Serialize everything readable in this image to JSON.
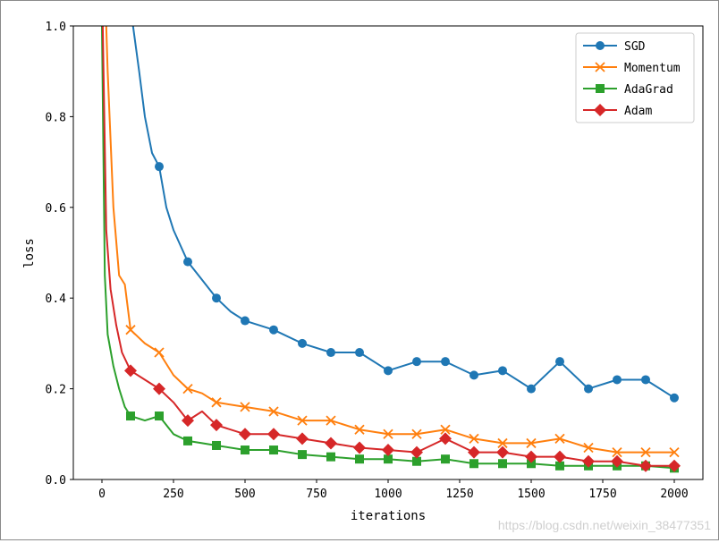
{
  "chart_data": {
    "type": "line",
    "xlabel": "iterations",
    "ylabel": "loss",
    "xlim": [
      -100,
      2100
    ],
    "ylim": [
      0,
      1.0
    ],
    "xticks": [
      "0",
      "250",
      "500",
      "750",
      "1000",
      "1250",
      "1500",
      "1750",
      "2000"
    ],
    "yticks": [
      "0.0",
      "0.2",
      "0.4",
      "0.6",
      "0.8",
      "1.0"
    ],
    "legend_position": "top-right",
    "grid": false,
    "series": [
      {
        "name": "SGD",
        "color": "#1f77b4",
        "marker": "circle",
        "x": [
          0,
          50,
          100,
          130,
          150,
          175,
          200,
          225,
          250,
          300,
          350,
          400,
          450,
          500,
          600,
          700,
          800,
          900,
          1000,
          1100,
          1200,
          1300,
          1400,
          1500,
          1600,
          1700,
          1800,
          1900,
          2000
        ],
        "y": [
          1.2,
          1.1,
          1.04,
          0.9,
          0.8,
          0.72,
          0.69,
          0.6,
          0.55,
          0.48,
          0.44,
          0.4,
          0.37,
          0.35,
          0.33,
          0.3,
          0.28,
          0.28,
          0.24,
          0.26,
          0.26,
          0.23,
          0.24,
          0.2,
          0.26,
          0.2,
          0.22,
          0.22,
          0.18
        ]
      },
      {
        "name": "Momentum",
        "color": "#ff7f0e",
        "marker": "x",
        "x": [
          0,
          20,
          40,
          60,
          80,
          100,
          150,
          200,
          250,
          300,
          350,
          400,
          500,
          600,
          700,
          800,
          900,
          1000,
          1100,
          1200,
          1300,
          1400,
          1500,
          1600,
          1700,
          1800,
          1900,
          2000
        ],
        "y": [
          1.3,
          0.9,
          0.6,
          0.45,
          0.43,
          0.33,
          0.3,
          0.28,
          0.23,
          0.2,
          0.19,
          0.17,
          0.16,
          0.15,
          0.13,
          0.13,
          0.11,
          0.1,
          0.1,
          0.11,
          0.09,
          0.08,
          0.08,
          0.09,
          0.07,
          0.06,
          0.06,
          0.06
        ]
      },
      {
        "name": "AdaGrad",
        "color": "#2ca02c",
        "marker": "square",
        "x": [
          0,
          10,
          20,
          40,
          60,
          80,
          100,
          150,
          200,
          250,
          300,
          350,
          400,
          500,
          600,
          700,
          800,
          900,
          1000,
          1100,
          1200,
          1300,
          1400,
          1500,
          1600,
          1700,
          1800,
          1900,
          2000
        ],
        "y": [
          1.0,
          0.45,
          0.32,
          0.25,
          0.2,
          0.16,
          0.14,
          0.13,
          0.14,
          0.1,
          0.085,
          0.08,
          0.075,
          0.065,
          0.065,
          0.055,
          0.05,
          0.045,
          0.045,
          0.04,
          0.045,
          0.035,
          0.035,
          0.035,
          0.03,
          0.03,
          0.03,
          0.03,
          0.025
        ]
      },
      {
        "name": "Adam",
        "color": "#d62728",
        "marker": "diamond",
        "x": [
          0,
          15,
          30,
          50,
          70,
          100,
          150,
          200,
          250,
          300,
          350,
          400,
          500,
          600,
          700,
          800,
          900,
          1000,
          1100,
          1200,
          1300,
          1400,
          1500,
          1600,
          1700,
          1800,
          1900,
          2000
        ],
        "y": [
          1.1,
          0.55,
          0.42,
          0.34,
          0.28,
          0.24,
          0.22,
          0.2,
          0.17,
          0.13,
          0.15,
          0.12,
          0.1,
          0.1,
          0.09,
          0.08,
          0.07,
          0.065,
          0.06,
          0.09,
          0.06,
          0.06,
          0.05,
          0.05,
          0.04,
          0.04,
          0.03,
          0.03
        ]
      }
    ]
  },
  "watermark": "https://blog.csdn.net/weixin_38477351"
}
